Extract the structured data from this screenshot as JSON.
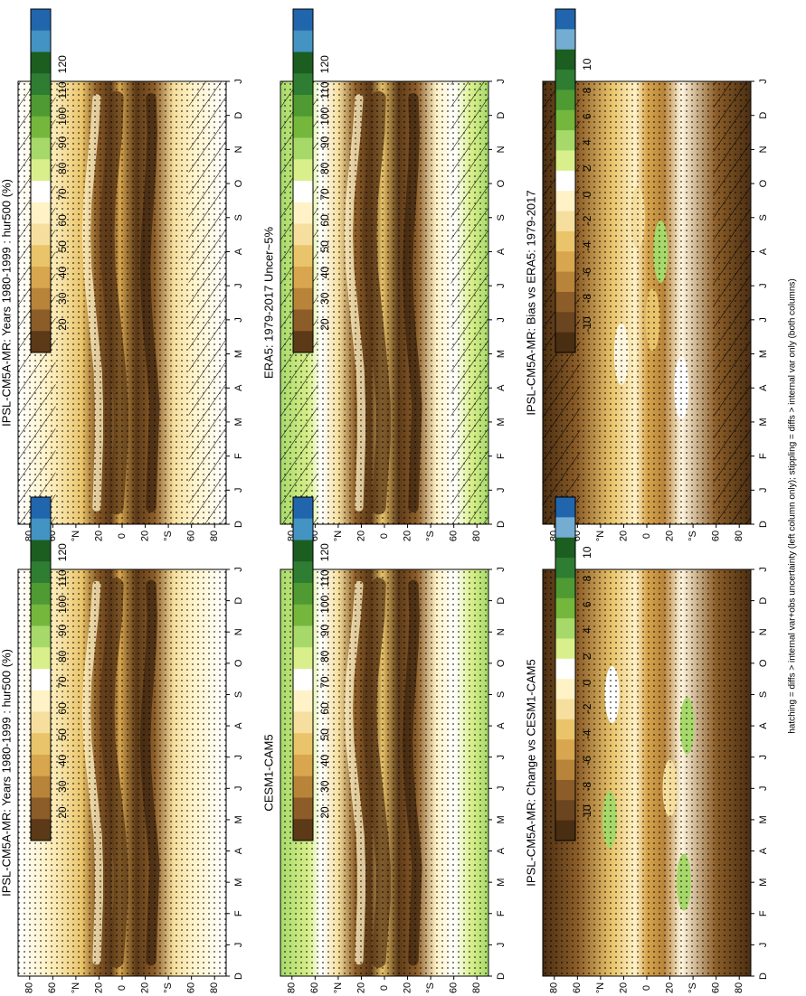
{
  "figure": {
    "footnote": "hatching = diffs > internal var+obs uncertainty (left column only); stippling = diffs > internal var only (both columns)"
  },
  "colorbars": {
    "abs": {
      "labels": [
        "120",
        "110",
        "100",
        "90",
        "80",
        "70",
        "60",
        "50",
        "40",
        "30",
        "20"
      ],
      "colors": [
        "#2166ac",
        "#4393c3",
        "#1b5e20",
        "#2e7d32",
        "#4f9a32",
        "#74b73c",
        "#a6d96a",
        "#d9ef8b",
        "#ffffff",
        "#fff2c6",
        "#f6df9e",
        "#e9c46a",
        "#d8a64e",
        "#b8843a",
        "#8c5d28",
        "#5c3a18"
      ]
    },
    "diff": {
      "labels": [
        "10",
        "8",
        "6",
        "4",
        "2",
        "0",
        "-2",
        "-4",
        "-6",
        "-8",
        "-10"
      ],
      "colors": [
        "#2166ac",
        "#74add1",
        "#1b5e20",
        "#2e7d32",
        "#4f9a32",
        "#74b73c",
        "#a6d96a",
        "#d9ef8b",
        "#ffffff",
        "#fff2c6",
        "#f6df9e",
        "#e9c46a",
        "#d8a64e",
        "#b8843a",
        "#8c5d28",
        "#6b4520",
        "#4a2e12"
      ]
    }
  },
  "axes": {
    "months": [
      "D",
      "J",
      "F",
      "M",
      "A",
      "M",
      "J",
      "J",
      "A",
      "S",
      "O",
      "N",
      "D",
      "J"
    ],
    "lat_ticks": [
      "80",
      "60",
      "°N",
      "20",
      "0",
      "20",
      "°S",
      "60",
      "80"
    ]
  },
  "chart_data": [
    {
      "panel": "model",
      "type": "heatmap",
      "title": "IPSL-CM5A-MR: Years 1980-1999 : hur500 (%)",
      "variable": "hur500",
      "units": "%",
      "x": "month",
      "y": "latitude",
      "ylim": [
        -90,
        90
      ],
      "climatology": {
        "itcz_moist_band_lat": [
          5,
          3,
          1,
          1,
          3,
          6,
          9,
          12,
          13,
          12,
          9,
          6,
          5
        ],
        "subtropical_dry_south_lat": [
          -25,
          -26,
          -27,
          -28,
          -26,
          -23,
          -21,
          -20,
          -21,
          -23,
          -25,
          -26,
          -25
        ],
        "subtropical_dry_north_lat": [
          22,
          21,
          20,
          20,
          21,
          24,
          27,
          30,
          31,
          30,
          27,
          24,
          22
        ]
      }
    },
    {
      "panel": "obs",
      "type": "heatmap",
      "title": "ERA5: 1979-2017 Uncer~5%",
      "variable": "hur500",
      "units": "%",
      "x": "month",
      "y": "latitude",
      "ylim": [
        -90,
        90
      ]
    },
    {
      "panel": "bias",
      "type": "heatmap",
      "title": "IPSL-CM5A-MR: Bias vs ERA5: 1979-2017",
      "variable": "hur500",
      "units": "%",
      "x": "month",
      "y": "latitude",
      "ylim": [
        -90,
        90
      ],
      "zlim": [
        -10,
        10
      ]
    },
    {
      "panel": "model_b",
      "type": "heatmap",
      "title": "IPSL-CM5A-MR: Years 1980-1999 : hur500 (%)",
      "variable": "hur500",
      "units": "%",
      "x": "month",
      "y": "latitude",
      "ylim": [
        -90,
        90
      ]
    },
    {
      "panel": "ref_model",
      "type": "heatmap",
      "title": "CESM1-CAM5",
      "variable": "hur500",
      "units": "%",
      "x": "month",
      "y": "latitude",
      "ylim": [
        -90,
        90
      ]
    },
    {
      "panel": "change",
      "type": "heatmap",
      "title": "IPSL-CM5A-MR: Change vs CESM1-CAM5",
      "variable": "hur500",
      "units": "%",
      "x": "month",
      "y": "latitude",
      "ylim": [
        -90,
        90
      ],
      "zlim": [
        -10,
        10
      ]
    }
  ]
}
